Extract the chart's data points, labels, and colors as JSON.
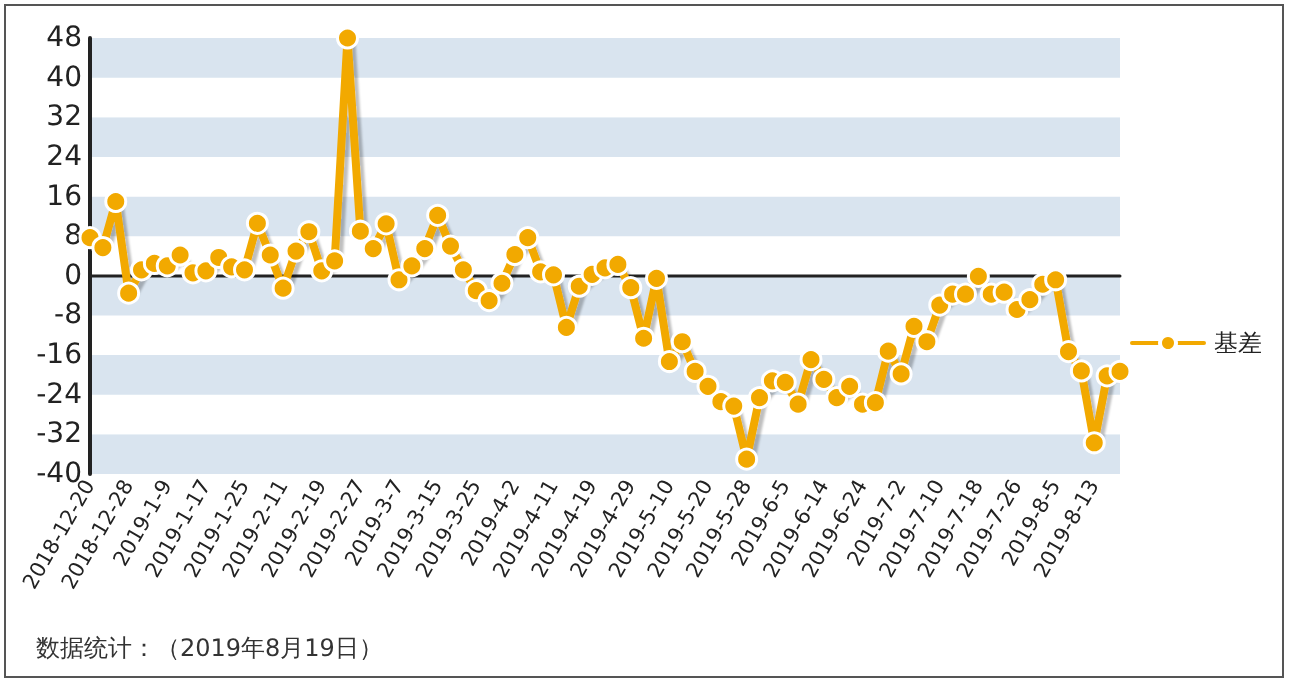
{
  "chart_data": {
    "type": "line",
    "categories": [
      "2018-12-20",
      null,
      null,
      "2018-12-28",
      null,
      null,
      "2019-1-9",
      null,
      null,
      "2019-1-17",
      null,
      null,
      "2019-1-25",
      null,
      null,
      "2019-2-11",
      null,
      null,
      "2019-2-19",
      null,
      null,
      "2019-2-27",
      null,
      null,
      "2019-3-7",
      null,
      null,
      "2019-3-15",
      null,
      null,
      "2019-3-25",
      null,
      null,
      "2019-4-2",
      null,
      null,
      "2019-4-11",
      null,
      null,
      "2019-4-19",
      null,
      null,
      "2019-4-29",
      null,
      null,
      "2019-5-10",
      null,
      null,
      "2019-5-20",
      null,
      null,
      "2019-5-28",
      null,
      null,
      "2019-6-5",
      null,
      null,
      "2019-6-14",
      null,
      null,
      "2019-6-24",
      null,
      null,
      "2019-7-2",
      null,
      null,
      "2019-7-10",
      null,
      null,
      "2019-7-18",
      null,
      null,
      "2019-7-26",
      null,
      null,
      "2019-8-5",
      null,
      null,
      "2019-8-13",
      null,
      null
    ],
    "series": [
      {
        "name": "基差",
        "color": "#f2a900",
        "values": [
          7.7,
          5.7,
          15,
          -3.5,
          1.2,
          2.5,
          2,
          4.2,
          0.6,
          1,
          3.7,
          1.8,
          1.2,
          10.6,
          4.2,
          -2.5,
          5,
          8.9,
          1,
          3,
          48,
          9,
          5.5,
          10.5,
          -0.8,
          2,
          5.5,
          12.2,
          6,
          1.2,
          -3,
          -5,
          -1.5,
          4.3,
          7.7,
          0.8,
          0.2,
          -10.4,
          -2.1,
          0.3,
          1.6,
          2.3,
          -2.4,
          -12.6,
          -0.5,
          -17.3,
          -13.3,
          -19.3,
          -22.3,
          -25.4,
          -26.3,
          -37,
          -24.6,
          -21.2,
          -21.5,
          -25.9,
          -16.9,
          -20.9,
          -24.6,
          -22.3,
          -25.9,
          -25.6,
          -15.2,
          -19.8,
          -10.2,
          -13.3,
          -5.9,
          -3.7,
          -3.7,
          -0.1,
          -3.7,
          -3.3,
          -6.8,
          -4.8,
          -1.7,
          -0.8,
          -15.3,
          -19.2,
          -33.7,
          -20.2,
          -19.3
        ]
      }
    ],
    "ylim": [
      -40,
      48
    ],
    "yticks": [
      -40,
      -32,
      -24,
      -16,
      -8,
      0,
      8,
      16,
      24,
      32,
      40,
      48
    ],
    "grid": true,
    "legend": "right",
    "marker": "circle",
    "line_style": "solid",
    "annotations": [
      "数据统计：（2019年8月19日）"
    ]
  }
}
